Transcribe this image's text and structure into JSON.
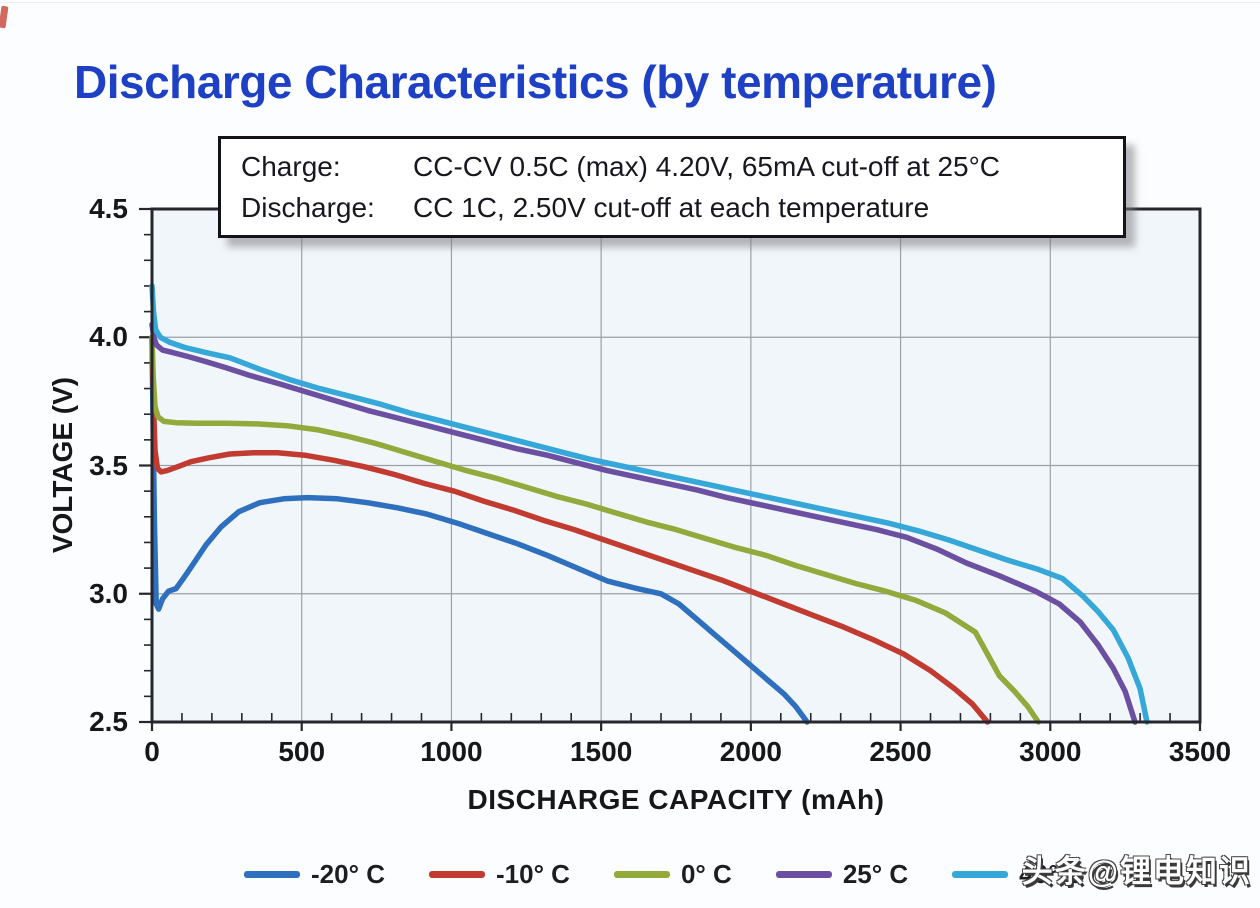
{
  "page": {
    "title": "Discharge Characteristics (by temperature)",
    "watermark": "头条@锂电知识"
  },
  "conditions_box": {
    "rows": [
      {
        "label": "Charge:",
        "value": "CC-CV 0.5C (max) 4.20V, 65mA cut-off at 25°C"
      },
      {
        "label": "Discharge:",
        "value": "CC 1C, 2.50V cut-off at each temperature"
      }
    ]
  },
  "colors": {
    "title": "#1d40c4",
    "plot_bg": "#f1f6fa",
    "grid": "#9aa0a6",
    "frame": "#26262e",
    "tick": "#26262e"
  },
  "chart_data": {
    "type": "line",
    "title": "Discharge Characteristics (by temperature)",
    "xlabel": "DISCHARGE CAPACITY (mAh)",
    "ylabel": "VOLTAGE (V)",
    "xlim": [
      0,
      3500
    ],
    "ylim": [
      2.5,
      4.5
    ],
    "grid": "major",
    "legend_position": "bottom",
    "x_major_ticks": [
      0,
      500,
      1000,
      1500,
      2000,
      2500,
      3000,
      3500
    ],
    "x_tick_labels": [
      "0",
      "500",
      "1000",
      "1500",
      "2000",
      "2500",
      "3000",
      "3500"
    ],
    "x_minor_step": 100,
    "y_major_ticks": [
      4.5,
      4.0,
      3.5,
      3.0,
      2.5
    ],
    "y_tick_labels": [
      "4.5",
      "4.0",
      "3.5",
      "3.0",
      "2.5"
    ],
    "y_minor_step": 0.1,
    "series": [
      {
        "name": "-20° C",
        "color": "#2e6fbe",
        "points": [
          [
            0,
            4.0
          ],
          [
            3,
            3.72
          ],
          [
            8,
            3.28
          ],
          [
            14,
            2.96
          ],
          [
            22,
            2.94
          ],
          [
            35,
            2.98
          ],
          [
            55,
            3.01
          ],
          [
            80,
            3.02
          ],
          [
            105,
            3.06
          ],
          [
            140,
            3.12
          ],
          [
            180,
            3.19
          ],
          [
            230,
            3.26
          ],
          [
            290,
            3.32
          ],
          [
            360,
            3.355
          ],
          [
            440,
            3.37
          ],
          [
            520,
            3.375
          ],
          [
            620,
            3.37
          ],
          [
            720,
            3.355
          ],
          [
            820,
            3.335
          ],
          [
            920,
            3.31
          ],
          [
            1020,
            3.275
          ],
          [
            1120,
            3.235
          ],
          [
            1220,
            3.195
          ],
          [
            1320,
            3.15
          ],
          [
            1420,
            3.1
          ],
          [
            1520,
            3.05
          ],
          [
            1620,
            3.02
          ],
          [
            1700,
            3.0
          ],
          [
            1760,
            2.96
          ],
          [
            1820,
            2.9
          ],
          [
            1880,
            2.84
          ],
          [
            1940,
            2.78
          ],
          [
            2000,
            2.72
          ],
          [
            2060,
            2.66
          ],
          [
            2110,
            2.61
          ],
          [
            2150,
            2.56
          ],
          [
            2188,
            2.5
          ]
        ]
      },
      {
        "name": "-10° C",
        "color": "#c13b30",
        "points": [
          [
            0,
            4.0
          ],
          [
            4,
            3.78
          ],
          [
            10,
            3.56
          ],
          [
            18,
            3.49
          ],
          [
            30,
            3.475
          ],
          [
            50,
            3.48
          ],
          [
            85,
            3.495
          ],
          [
            130,
            3.515
          ],
          [
            190,
            3.53
          ],
          [
            260,
            3.545
          ],
          [
            340,
            3.55
          ],
          [
            420,
            3.55
          ],
          [
            510,
            3.54
          ],
          [
            610,
            3.52
          ],
          [
            710,
            3.495
          ],
          [
            810,
            3.465
          ],
          [
            910,
            3.43
          ],
          [
            1010,
            3.4
          ],
          [
            1110,
            3.36
          ],
          [
            1210,
            3.325
          ],
          [
            1310,
            3.285
          ],
          [
            1410,
            3.25
          ],
          [
            1510,
            3.21
          ],
          [
            1610,
            3.17
          ],
          [
            1710,
            3.13
          ],
          [
            1810,
            3.09
          ],
          [
            1910,
            3.05
          ],
          [
            2010,
            3.005
          ],
          [
            2110,
            2.96
          ],
          [
            2210,
            2.915
          ],
          [
            2310,
            2.87
          ],
          [
            2410,
            2.82
          ],
          [
            2510,
            2.765
          ],
          [
            2600,
            2.7
          ],
          [
            2680,
            2.63
          ],
          [
            2740,
            2.57
          ],
          [
            2790,
            2.5
          ]
        ]
      },
      {
        "name": "0° C",
        "color": "#92a93c",
        "points": [
          [
            0,
            4.0
          ],
          [
            4,
            3.85
          ],
          [
            10,
            3.73
          ],
          [
            20,
            3.69
          ],
          [
            40,
            3.672
          ],
          [
            80,
            3.667
          ],
          [
            150,
            3.665
          ],
          [
            250,
            3.665
          ],
          [
            350,
            3.662
          ],
          [
            450,
            3.655
          ],
          [
            550,
            3.64
          ],
          [
            650,
            3.615
          ],
          [
            750,
            3.585
          ],
          [
            850,
            3.55
          ],
          [
            950,
            3.515
          ],
          [
            1050,
            3.48
          ],
          [
            1150,
            3.45
          ],
          [
            1250,
            3.415
          ],
          [
            1350,
            3.38
          ],
          [
            1450,
            3.35
          ],
          [
            1550,
            3.315
          ],
          [
            1650,
            3.28
          ],
          [
            1750,
            3.25
          ],
          [
            1850,
            3.215
          ],
          [
            1950,
            3.18
          ],
          [
            2050,
            3.15
          ],
          [
            2150,
            3.11
          ],
          [
            2250,
            3.075
          ],
          [
            2350,
            3.04
          ],
          [
            2450,
            3.01
          ],
          [
            2550,
            2.975
          ],
          [
            2650,
            2.925
          ],
          [
            2750,
            2.85
          ],
          [
            2830,
            2.68
          ],
          [
            2880,
            2.62
          ],
          [
            2925,
            2.56
          ],
          [
            2960,
            2.5
          ]
        ]
      },
      {
        "name": "25° C",
        "color": "#6b4fa1",
        "points": [
          [
            0,
            4.05
          ],
          [
            6,
            4.0
          ],
          [
            15,
            3.97
          ],
          [
            35,
            3.95
          ],
          [
            70,
            3.94
          ],
          [
            120,
            3.925
          ],
          [
            180,
            3.905
          ],
          [
            250,
            3.88
          ],
          [
            330,
            3.85
          ],
          [
            420,
            3.82
          ],
          [
            520,
            3.785
          ],
          [
            620,
            3.75
          ],
          [
            720,
            3.715
          ],
          [
            820,
            3.685
          ],
          [
            920,
            3.655
          ],
          [
            1020,
            3.625
          ],
          [
            1120,
            3.595
          ],
          [
            1220,
            3.565
          ],
          [
            1320,
            3.54
          ],
          [
            1420,
            3.51
          ],
          [
            1520,
            3.48
          ],
          [
            1620,
            3.455
          ],
          [
            1720,
            3.43
          ],
          [
            1820,
            3.405
          ],
          [
            1920,
            3.375
          ],
          [
            2020,
            3.35
          ],
          [
            2120,
            3.325
          ],
          [
            2220,
            3.3
          ],
          [
            2320,
            3.275
          ],
          [
            2420,
            3.25
          ],
          [
            2520,
            3.22
          ],
          [
            2620,
            3.175
          ],
          [
            2720,
            3.12
          ],
          [
            2830,
            3.07
          ],
          [
            2950,
            3.01
          ],
          [
            3030,
            2.96
          ],
          [
            3100,
            2.89
          ],
          [
            3160,
            2.8
          ],
          [
            3210,
            2.71
          ],
          [
            3250,
            2.62
          ],
          [
            3283,
            2.5
          ]
        ]
      },
      {
        "name": "40° C",
        "color": "#36a7d9",
        "points": [
          [
            0,
            4.2
          ],
          [
            5,
            4.1
          ],
          [
            12,
            4.03
          ],
          [
            28,
            4.0
          ],
          [
            60,
            3.98
          ],
          [
            110,
            3.96
          ],
          [
            180,
            3.94
          ],
          [
            260,
            3.92
          ],
          [
            360,
            3.875
          ],
          [
            460,
            3.835
          ],
          [
            560,
            3.8
          ],
          [
            660,
            3.77
          ],
          [
            760,
            3.74
          ],
          [
            860,
            3.705
          ],
          [
            960,
            3.675
          ],
          [
            1060,
            3.645
          ],
          [
            1160,
            3.615
          ],
          [
            1260,
            3.585
          ],
          [
            1360,
            3.555
          ],
          [
            1460,
            3.525
          ],
          [
            1560,
            3.5
          ],
          [
            1660,
            3.475
          ],
          [
            1760,
            3.45
          ],
          [
            1860,
            3.425
          ],
          [
            1960,
            3.4
          ],
          [
            2060,
            3.375
          ],
          [
            2160,
            3.35
          ],
          [
            2260,
            3.325
          ],
          [
            2360,
            3.3
          ],
          [
            2460,
            3.275
          ],
          [
            2560,
            3.245
          ],
          [
            2660,
            3.21
          ],
          [
            2760,
            3.17
          ],
          [
            2860,
            3.13
          ],
          [
            2960,
            3.095
          ],
          [
            3040,
            3.06
          ],
          [
            3110,
            2.99
          ],
          [
            3160,
            2.93
          ],
          [
            3210,
            2.86
          ],
          [
            3260,
            2.75
          ],
          [
            3300,
            2.63
          ],
          [
            3323,
            2.5
          ]
        ]
      }
    ]
  }
}
